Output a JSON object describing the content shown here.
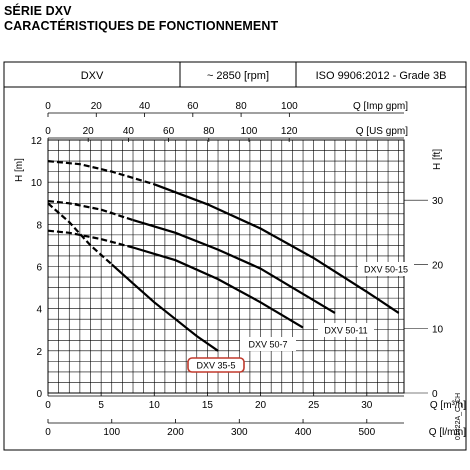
{
  "header": {
    "series_title": "SÉRIE DXV",
    "subtitle": "CARACTÉRISTIQUES DE FONCTIONNEMENT",
    "model": "DXV",
    "speed": "~ 2850 [rpm]",
    "standard": "ISO 9906:2012 - Grade 3B"
  },
  "doc_code": "01422A_C_CH",
  "chart_data": {
    "type": "line",
    "x_axes": [
      {
        "unit": "Q [Imp gpm]",
        "ticks": [
          0,
          20,
          40,
          60,
          80,
          100
        ]
      },
      {
        "unit": "Q [US gpm]",
        "ticks": [
          0,
          20,
          40,
          60,
          80,
          100,
          120
        ]
      },
      {
        "unit": "Q [m³/h]",
        "ticks": [
          0,
          5,
          10,
          15,
          20,
          25,
          30
        ]
      },
      {
        "unit": "Q [l/min]",
        "ticks": [
          0,
          100,
          200,
          300,
          400,
          500
        ]
      }
    ],
    "y_axes": [
      {
        "unit": "H [m]",
        "ticks": [
          0,
          2,
          4,
          6,
          8,
          10,
          12
        ]
      },
      {
        "unit": "H [ft]",
        "ticks": [
          0,
          10,
          20,
          30
        ]
      }
    ],
    "xlim_m3h": [
      0,
      33.5
    ],
    "ylim_m": [
      0,
      12
    ],
    "grid": true,
    "highlighted_series": "DXV 35-5",
    "series": [
      {
        "name": "DXV 50-15",
        "x": [
          0,
          3,
          6,
          10,
          15,
          20,
          25,
          30,
          33
        ],
        "y": [
          11.0,
          10.85,
          10.5,
          9.9,
          8.95,
          7.8,
          6.4,
          4.8,
          3.8
        ]
      },
      {
        "name": "DXV 50-11",
        "x": [
          0,
          2,
          5,
          8,
          12,
          16,
          20,
          24,
          27
        ],
        "y": [
          9.1,
          9.0,
          8.7,
          8.2,
          7.6,
          6.8,
          5.9,
          4.7,
          3.8
        ]
      },
      {
        "name": "DXV 50-7",
        "x": [
          0,
          2,
          5,
          8,
          12,
          16,
          20,
          24
        ],
        "y": [
          7.7,
          7.6,
          7.3,
          6.9,
          6.3,
          5.4,
          4.3,
          3.1
        ]
      },
      {
        "name": "DXV 35-5",
        "x": [
          0,
          2,
          4,
          6,
          8,
          10,
          12,
          14,
          16
        ],
        "y": [
          9.0,
          8.1,
          7.0,
          6.1,
          5.2,
          4.3,
          3.5,
          2.7,
          2.0
        ]
      }
    ]
  }
}
